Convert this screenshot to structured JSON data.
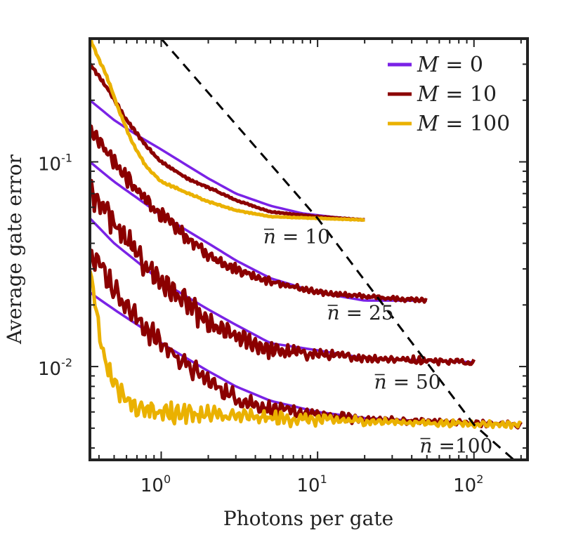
{
  "chart_data": {
    "type": "line",
    "xscale": "log",
    "yscale": "log",
    "xlim": [
      0.35,
      220
    ],
    "ylim": [
      0.0035,
      0.4
    ],
    "xlabel": "Photons per gate",
    "ylabel": "Average gate error",
    "x_ticks": [
      {
        "value": 1,
        "base": "10",
        "exp": "0"
      },
      {
        "value": 10,
        "base": "10",
        "exp": "1"
      },
      {
        "value": 100,
        "base": "10",
        "exp": "2"
      }
    ],
    "y_ticks": [
      {
        "value": 0.1,
        "base": "10",
        "exp": "-1"
      },
      {
        "value": 0.01,
        "base": "10",
        "exp": "-2"
      }
    ],
    "grid": false,
    "legend_position": "top-right",
    "legend": [
      {
        "series": "M0",
        "var": "M",
        "eq": " = 0",
        "color": "#7a22e6"
      },
      {
        "series": "M10",
        "var": "M",
        "eq": " = 10",
        "color": "#8b0000"
      },
      {
        "series": "M100",
        "var": "M",
        "eq": " = 100",
        "color": "#eab100"
      }
    ],
    "annotations": [
      {
        "text_var": "n",
        "text_rest": " = 10",
        "x": 4.5,
        "y": 0.04
      },
      {
        "text_var": "n",
        "text_rest": " = 25",
        "x": 11.5,
        "y": 0.017
      },
      {
        "text_var": "n",
        "text_rest": " = 50",
        "x": 23,
        "y": 0.0078
      },
      {
        "text_var": "n",
        "text_rest": " =100",
        "x": 45,
        "y": 0.0038
      }
    ],
    "reference_line": {
      "style": "dashed",
      "color": "#000000",
      "points": [
        [
          1,
          0.4
        ],
        [
          10,
          0.053
        ],
        [
          100,
          0.0052
        ],
        [
          180,
          0.0035
        ]
      ]
    },
    "series": [
      {
        "group": "nbar10",
        "style": "M0",
        "points": [
          [
            0.35,
            0.2
          ],
          [
            0.5,
            0.16
          ],
          [
            0.7,
            0.135
          ],
          [
            1,
            0.115
          ],
          [
            1.5,
            0.095
          ],
          [
            2,
            0.083
          ],
          [
            3,
            0.07
          ],
          [
            5,
            0.061
          ],
          [
            8,
            0.056
          ],
          [
            12,
            0.054
          ],
          [
            20,
            0.052
          ]
        ]
      },
      {
        "group": "nbar10",
        "style": "M10",
        "points": [
          [
            0.35,
            0.3
          ],
          [
            0.45,
            0.23
          ],
          [
            0.6,
            0.16
          ],
          [
            0.8,
            0.12
          ],
          [
            1,
            0.1
          ],
          [
            1.5,
            0.082
          ],
          [
            2,
            0.075
          ],
          [
            3,
            0.065
          ],
          [
            5,
            0.057
          ],
          [
            10,
            0.054
          ],
          [
            20,
            0.052
          ]
        ],
        "noise": 0.008
      },
      {
        "group": "nbar10",
        "style": "M100",
        "points": [
          [
            0.35,
            0.4
          ],
          [
            0.45,
            0.26
          ],
          [
            0.55,
            0.17
          ],
          [
            0.65,
            0.125
          ],
          [
            0.8,
            0.095
          ],
          [
            1,
            0.08
          ],
          [
            1.5,
            0.07
          ],
          [
            2,
            0.064
          ],
          [
            3,
            0.058
          ],
          [
            5,
            0.054
          ],
          [
            10,
            0.053
          ],
          [
            20,
            0.052
          ]
        ],
        "noise": 0.006
      },
      {
        "group": "nbar25",
        "style": "M0",
        "points": [
          [
            0.35,
            0.1
          ],
          [
            0.5,
            0.08
          ],
          [
            0.8,
            0.062
          ],
          [
            1,
            0.055
          ],
          [
            2,
            0.04
          ],
          [
            3,
            0.033
          ],
          [
            5,
            0.027
          ],
          [
            10,
            0.023
          ],
          [
            20,
            0.021
          ],
          [
            50,
            0.021
          ]
        ]
      },
      {
        "group": "nbar25",
        "style": "M10",
        "points": [
          [
            0.35,
            0.15
          ],
          [
            0.5,
            0.1
          ],
          [
            0.7,
            0.072
          ],
          [
            1,
            0.055
          ],
          [
            1.5,
            0.042
          ],
          [
            2,
            0.035
          ],
          [
            3,
            0.03
          ],
          [
            5,
            0.026
          ],
          [
            10,
            0.023
          ],
          [
            20,
            0.022
          ],
          [
            50,
            0.021
          ]
        ],
        "noise": 0.04
      },
      {
        "group": "nbar50",
        "style": "M0",
        "points": [
          [
            0.35,
            0.053
          ],
          [
            0.5,
            0.04
          ],
          [
            0.8,
            0.03
          ],
          [
            1,
            0.026
          ],
          [
            2,
            0.019
          ],
          [
            3,
            0.016
          ],
          [
            5,
            0.013
          ],
          [
            10,
            0.012
          ],
          [
            20,
            0.011
          ],
          [
            50,
            0.0107
          ],
          [
            100,
            0.0105
          ]
        ]
      },
      {
        "group": "nbar50",
        "style": "M10",
        "points": [
          [
            0.35,
            0.075
          ],
          [
            0.5,
            0.05
          ],
          [
            0.7,
            0.035
          ],
          [
            1,
            0.026
          ],
          [
            1.5,
            0.02
          ],
          [
            2,
            0.016
          ],
          [
            3,
            0.014
          ],
          [
            5,
            0.012
          ],
          [
            10,
            0.0115
          ],
          [
            20,
            0.011
          ],
          [
            50,
            0.0107
          ],
          [
            100,
            0.0105
          ]
        ],
        "noise": 0.07
      },
      {
        "group": "nbar100",
        "style": "M0",
        "points": [
          [
            0.35,
            0.023
          ],
          [
            0.5,
            0.019
          ],
          [
            0.8,
            0.015
          ],
          [
            1,
            0.013
          ],
          [
            2,
            0.0095
          ],
          [
            3,
            0.008
          ],
          [
            5,
            0.0068
          ],
          [
            10,
            0.006
          ],
          [
            20,
            0.0056
          ],
          [
            50,
            0.0054
          ],
          [
            100,
            0.0053
          ],
          [
            200,
            0.0052
          ]
        ]
      },
      {
        "group": "nbar100",
        "style": "M10",
        "points": [
          [
            0.35,
            0.038
          ],
          [
            0.5,
            0.024
          ],
          [
            0.7,
            0.017
          ],
          [
            1,
            0.013
          ],
          [
            1.5,
            0.01
          ],
          [
            2,
            0.0085
          ],
          [
            3,
            0.007
          ],
          [
            5,
            0.0062
          ],
          [
            10,
            0.0058
          ],
          [
            20,
            0.0055
          ],
          [
            50,
            0.0054
          ],
          [
            100,
            0.0053
          ],
          [
            200,
            0.0052
          ]
        ],
        "noise": 0.06
      },
      {
        "group": "nbar100",
        "style": "M100",
        "points": [
          [
            0.35,
            0.03
          ],
          [
            0.4,
            0.014
          ],
          [
            0.45,
            0.01
          ],
          [
            0.55,
            0.0075
          ],
          [
            0.7,
            0.0063
          ],
          [
            1,
            0.006
          ],
          [
            2,
            0.0058
          ],
          [
            5,
            0.0056
          ],
          [
            10,
            0.0055
          ],
          [
            50,
            0.0053
          ],
          [
            200,
            0.0052
          ]
        ],
        "noise": 0.06
      }
    ]
  }
}
